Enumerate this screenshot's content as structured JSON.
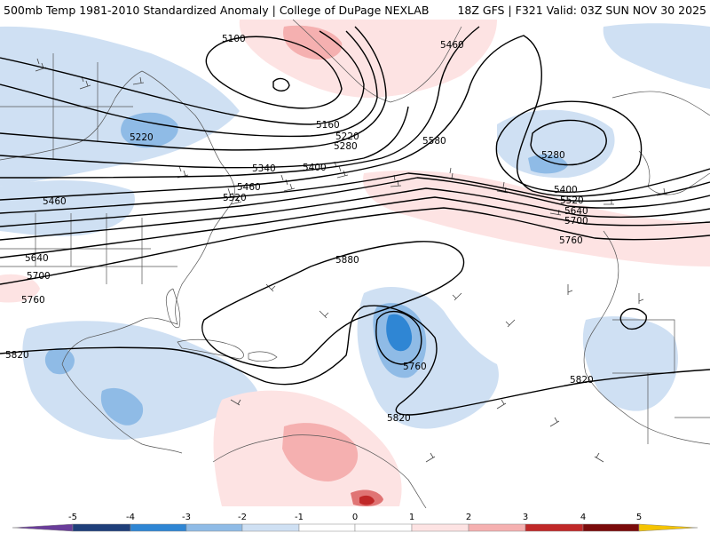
{
  "header": {
    "title": "500mb Temp 1981-2010 Standardized Anomaly | College of DuPage NEXLAB",
    "run": "18Z GFS | F321 Valid: 03Z SUN NOV 30 2025"
  },
  "contour_labels": [
    "5100",
    "5160",
    "5220",
    "5280",
    "5340",
    "5400",
    "5460",
    "5520",
    "5580",
    "5640",
    "5700",
    "5760",
    "5820",
    "5880"
  ],
  "colors": {
    "cold5": "#6a3d9a",
    "cold4": "#1f3f7a",
    "cold3": "#2f86d4",
    "cold2": "#8fbbe6",
    "cold1": "#cfe0f3",
    "warm1": "#fde3e3",
    "warm2": "#f5b0b0",
    "warm3": "#e07474",
    "warm4": "#c02828",
    "warm5": "#7a0b0b",
    "warm6": "#f5c400",
    "contour": "#000000",
    "barb": "#444444",
    "border": "#555555"
  },
  "legend": {
    "ticks": [
      "-5",
      "-4",
      "-3",
      "-2",
      "-1",
      "0",
      "1",
      "2",
      "3",
      "4",
      "5"
    ]
  }
}
